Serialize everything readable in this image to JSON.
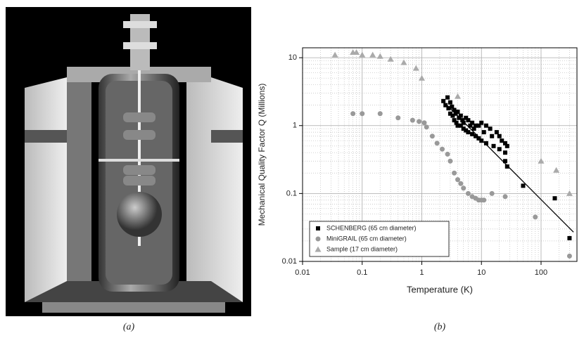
{
  "panel_labels": [
    "(a)",
    "(b)"
  ],
  "chart_data": {
    "type": "scatter",
    "x_label": "Temperature (K)",
    "y_label": "Mechanical Quality Factor Q (Millions)",
    "xscale": "log",
    "yscale": "log",
    "xlim": [
      0.01,
      400
    ],
    "ylim": [
      0.01,
      14
    ],
    "xticks": [
      0.01,
      0.1,
      1,
      10,
      100
    ],
    "yticks": [
      0.01,
      0.1,
      1,
      10
    ],
    "grid": true,
    "minor_grid": true,
    "legend": "lower left",
    "series": [
      {
        "name": "SCHENBERG (65 cm diameter)",
        "color": "#000000",
        "marker": "square",
        "x": [
          2.3,
          2.5,
          2.7,
          2.8,
          3,
          3,
          3.2,
          3.3,
          3.5,
          3.5,
          3.7,
          3.8,
          4,
          4,
          4.2,
          4.5,
          4.5,
          4.8,
          5,
          5,
          5.5,
          5.5,
          6,
          6,
          6.5,
          7,
          7,
          7.5,
          8,
          8,
          9,
          9,
          10,
          10,
          11,
          12,
          12,
          14,
          15,
          16,
          18,
          20,
          20,
          22,
          25,
          25,
          25,
          27,
          27,
          50,
          170,
          300
        ],
        "y": [
          2.3,
          2.0,
          2.6,
          1.8,
          2.2,
          1.5,
          1.9,
          1.4,
          1.7,
          1.2,
          1.5,
          1.1,
          1.6,
          1.0,
          1.3,
          1.4,
          1.0,
          1.2,
          1.1,
          0.9,
          1.3,
          0.85,
          1.2,
          0.8,
          1.0,
          1.1,
          0.75,
          0.9,
          1.0,
          0.7,
          1.0,
          0.65,
          1.1,
          0.6,
          0.8,
          1.0,
          0.55,
          0.9,
          0.7,
          0.5,
          0.8,
          0.7,
          0.45,
          0.6,
          0.55,
          0.4,
          0.3,
          0.5,
          0.25,
          0.13,
          0.085,
          0.022
        ]
      },
      {
        "name": "MiniGRAIL (65 cm diameter)",
        "color": "#999999",
        "marker": "circle",
        "x": [
          0.07,
          0.1,
          0.2,
          0.4,
          0.7,
          0.9,
          1.1,
          1.2,
          1.5,
          1.8,
          2.2,
          2.7,
          3,
          3.5,
          4,
          4.5,
          5,
          6,
          7,
          8,
          9,
          10,
          11,
          15,
          25,
          80,
          300
        ],
        "y": [
          1.5,
          1.5,
          1.5,
          1.3,
          1.2,
          1.15,
          1.1,
          0.95,
          0.7,
          0.55,
          0.45,
          0.38,
          0.3,
          0.2,
          0.16,
          0.14,
          0.12,
          0.1,
          0.09,
          0.085,
          0.08,
          0.08,
          0.08,
          0.1,
          0.09,
          0.045,
          0.012
        ]
      },
      {
        "name": "Sample (17 cm diameter)",
        "color": "#aaaaaa",
        "marker": "triangle",
        "x": [
          0.035,
          0.07,
          0.08,
          0.1,
          0.15,
          0.2,
          0.3,
          0.5,
          0.8,
          1.0,
          4,
          100,
          180,
          300
        ],
        "y": [
          11,
          12,
          12,
          11,
          11,
          10.5,
          9.5,
          8.5,
          7,
          5,
          2.7,
          0.3,
          0.22,
          0.1
        ]
      }
    ],
    "fit_line": {
      "color": "#000000",
      "x": [
        2.5,
        350
      ],
      "y": [
        2.1,
        0.027
      ]
    }
  }
}
